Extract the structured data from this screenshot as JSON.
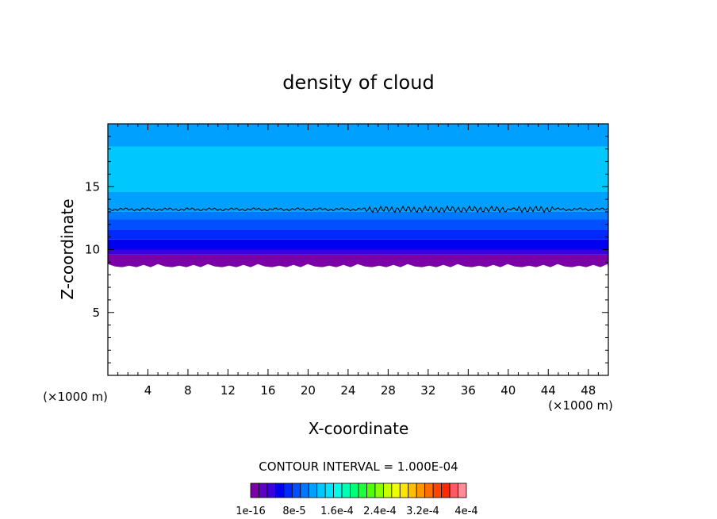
{
  "chart_data": {
    "type": "heatmap",
    "title": "density of cloud",
    "xlabel": "X-coordinate",
    "ylabel": "Z-coordinate",
    "x_unit": "(×1000 m)",
    "z_unit": "(×1000 m)",
    "xlim": [
      0,
      50
    ],
    "ylim": [
      0,
      20
    ],
    "x_ticks": [
      4,
      8,
      12,
      16,
      20,
      24,
      28,
      32,
      36,
      40,
      44,
      48
    ],
    "y_ticks": [
      5,
      10,
      15
    ],
    "cloud_base_z": 8.6,
    "cloud_top_z": 20,
    "contour_line_z": 13.2,
    "contour_interval_text": "CONTOUR INTERVAL = 1.000E-04",
    "colorbar": {
      "colors": [
        "#7b00a8",
        "#5f00c8",
        "#3c00e0",
        "#0000f0",
        "#0028ff",
        "#0050ff",
        "#0078ff",
        "#00a0ff",
        "#00c8ff",
        "#00e6ff",
        "#00ffe6",
        "#00ffb4",
        "#00ff78",
        "#1eff3c",
        "#50ff00",
        "#8cff00",
        "#c8ff00",
        "#f0ff00",
        "#ffe600",
        "#ffbe00",
        "#ff9600",
        "#ff6e00",
        "#ff4600",
        "#ff2800",
        "#ff5a64",
        "#ff8c96"
      ],
      "labels": [
        "1e-16",
        "8e-5",
        "1.6e-4",
        "2.4e-4",
        "3.2e-4",
        "4e-4"
      ]
    },
    "bands": [
      {
        "z0": 8.6,
        "z1": 9.6,
        "color": "#7b00a8"
      },
      {
        "z0": 9.6,
        "z1": 10.0,
        "color": "#3c00e0"
      },
      {
        "z0": 10.0,
        "z1": 10.8,
        "color": "#0000f0"
      },
      {
        "z0": 10.8,
        "z1": 11.6,
        "color": "#0028ff"
      },
      {
        "z0": 11.6,
        "z1": 12.4,
        "color": "#0050ff"
      },
      {
        "z0": 12.4,
        "z1": 13.0,
        "color": "#0078ff"
      },
      {
        "z0": 13.0,
        "z1": 14.6,
        "color": "#00a0ff"
      },
      {
        "z0": 14.6,
        "z1": 18.2,
        "color": "#00c8ff"
      },
      {
        "z0": 18.2,
        "z1": 20.0,
        "color": "#00a0ff"
      }
    ]
  }
}
